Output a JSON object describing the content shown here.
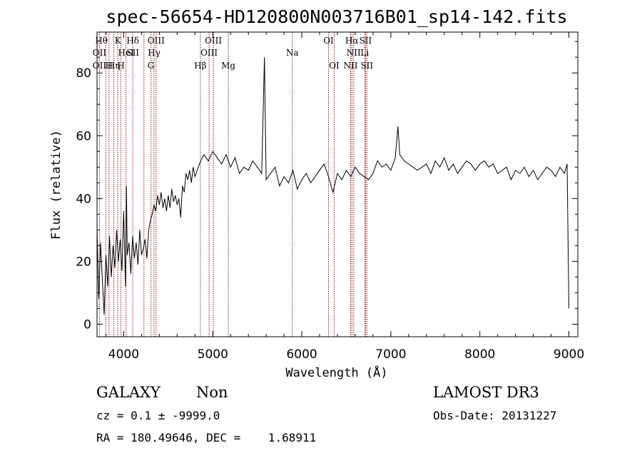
{
  "chart_data": {
    "type": "line",
    "title": "spec-56654-HD120800N003716B01_sp14-142.fits",
    "xlabel": "Wavelength (Å)",
    "ylabel": "Flux (relative)",
    "xlim": [
      3700,
      9100
    ],
    "ylim": [
      -4,
      93
    ],
    "xticks": [
      "4000",
      "5000",
      "6000",
      "7000",
      "8000",
      "9000"
    ],
    "yticks": [
      "0",
      "20",
      "40",
      "60",
      "80"
    ],
    "spectrum": {
      "x": [
        3700,
        3720,
        3740,
        3760,
        3780,
        3800,
        3820,
        3840,
        3860,
        3880,
        3900,
        3920,
        3940,
        3960,
        3980,
        4000,
        4020,
        4030,
        4040,
        4060,
        4080,
        4100,
        4120,
        4140,
        4160,
        4180,
        4200,
        4220,
        4240,
        4260,
        4280,
        4300,
        4320,
        4340,
        4360,
        4380,
        4400,
        4420,
        4440,
        4460,
        4480,
        4500,
        4520,
        4540,
        4560,
        4580,
        4600,
        4620,
        4640,
        4660,
        4680,
        4700,
        4720,
        4740,
        4760,
        4780,
        4800,
        4850,
        4900,
        4950,
        5000,
        5050,
        5100,
        5150,
        5200,
        5250,
        5300,
        5350,
        5400,
        5450,
        5500,
        5550,
        5580,
        5600,
        5650,
        5700,
        5750,
        5800,
        5850,
        5900,
        5950,
        6000,
        6050,
        6100,
        6150,
        6200,
        6250,
        6300,
        6350,
        6400,
        6450,
        6500,
        6550,
        6600,
        6650,
        6700,
        6750,
        6800,
        6850,
        6900,
        6950,
        7000,
        7050,
        7080,
        7100,
        7150,
        7200,
        7250,
        7300,
        7350,
        7400,
        7450,
        7500,
        7550,
        7600,
        7650,
        7700,
        7750,
        7800,
        7850,
        7900,
        7950,
        8000,
        8050,
        8100,
        8150,
        8200,
        8250,
        8300,
        8350,
        8400,
        8450,
        8500,
        8550,
        8600,
        8650,
        8700,
        8750,
        8800,
        8850,
        8900,
        8950,
        8980,
        9000
      ],
      "y": [
        30,
        8,
        26,
        14,
        3,
        22,
        12,
        28,
        15,
        25,
        18,
        30,
        20,
        27,
        17,
        36,
        12,
        44,
        22,
        26,
        16,
        28,
        21,
        26,
        19,
        30,
        22,
        24,
        27,
        21,
        30,
        33,
        35,
        38,
        36,
        41,
        38,
        42,
        37,
        40,
        36,
        41,
        37,
        43,
        39,
        41,
        38,
        40,
        34,
        44,
        42,
        48,
        46,
        49,
        45,
        50,
        47,
        51,
        54,
        52,
        55,
        53,
        51,
        54,
        50,
        53,
        48,
        50,
        49,
        52,
        50,
        48,
        85,
        46,
        48,
        50,
        44,
        47,
        45,
        49,
        43,
        46,
        48,
        45,
        47,
        49,
        51,
        47,
        42,
        48,
        46,
        49,
        47,
        50,
        48,
        47,
        46,
        48,
        52,
        50,
        51,
        49,
        53,
        63,
        54,
        52,
        51,
        50,
        49,
        50,
        51,
        48,
        52,
        50,
        53,
        49,
        51,
        48,
        50,
        52,
        51,
        49,
        51,
        52,
        50,
        51,
        48,
        49,
        50,
        46,
        49,
        48,
        50,
        47,
        49,
        46,
        48,
        50,
        49,
        47,
        50,
        48,
        51,
        5
      ]
    },
    "lines": [
      {
        "x": 3727,
        "labels": [
          "OII"
        ],
        "row": 1
      },
      {
        "x": 3798,
        "labels": [],
        "row": 0
      },
      {
        "x": 3835,
        "labels": [],
        "row": 0
      },
      {
        "x": 3889,
        "labels": [
          "Hη"
        ],
        "row": 2
      },
      {
        "x": 3934,
        "labels": [
          "K"
        ],
        "row": 0
      },
      {
        "x": 3969,
        "labels": [
          "H"
        ],
        "row": 2
      },
      {
        "x": 4026,
        "labels": [
          "HeI"
        ],
        "row": 1
      },
      {
        "x": 4102,
        "labels": [
          "Hδ"
        ],
        "row": 0
      },
      {
        "x": 4227,
        "labels": [],
        "row": 0
      },
      {
        "x": 4306,
        "labels": [
          "G"
        ],
        "row": 2
      },
      {
        "x": 4341,
        "labels": [
          "Hγ"
        ],
        "row": 1
      },
      {
        "x": 4363,
        "labels": [
          "OIII"
        ],
        "row": 0
      },
      {
        "x": 4861,
        "labels": [
          "Hβ"
        ],
        "row": 2
      },
      {
        "x": 4959,
        "labels": [
          "OIII"
        ],
        "row": 1
      },
      {
        "x": 5007,
        "labels": [
          "OIII"
        ],
        "row": 0
      },
      {
        "x": 5175,
        "labels": [
          "Mg"
        ],
        "row": 2
      },
      {
        "x": 5894,
        "labels": [
          "Na"
        ],
        "row": 1
      },
      {
        "x": 6300,
        "labels": [
          "OI"
        ],
        "row": 0
      },
      {
        "x": 6364,
        "labels": [
          "OI"
        ],
        "row": 2
      },
      {
        "x": 6548,
        "labels": [
          "NII"
        ],
        "row": 2
      },
      {
        "x": 6563,
        "labels": [
          "Hα"
        ],
        "row": 0
      },
      {
        "x": 6583,
        "labels": [
          "NII"
        ],
        "row": 1
      },
      {
        "x": 6707,
        "labels": [
          "Li"
        ],
        "row": 1
      },
      {
        "x": 6716,
        "labels": [
          "SII"
        ],
        "row": 0
      },
      {
        "x": 6731,
        "labels": [
          "SII"
        ],
        "row": 2
      }
    ],
    "line_label_extras": [
      {
        "x": 3727,
        "text": "OII",
        "row": 2
      },
      {
        "x": 3750,
        "text": "Hθ",
        "row": 0
      },
      {
        "x": 4102,
        "text": "SII",
        "row": 1
      },
      {
        "x": 3835,
        "text": "H",
        "row": 2
      }
    ]
  },
  "info": {
    "class_label": "GALAXY",
    "subclass": "Non",
    "survey": "LAMOST DR3",
    "cz_line": "cz = 0.1 ± -9999.0",
    "obsdate_line": "Obs-Date: 20131227",
    "coords_line": "RA = 180.49646, DEC =    1.68911"
  },
  "colors": {
    "spectrum": "#000000",
    "line_markers": "#8b1a1a",
    "axes": "#000000"
  }
}
